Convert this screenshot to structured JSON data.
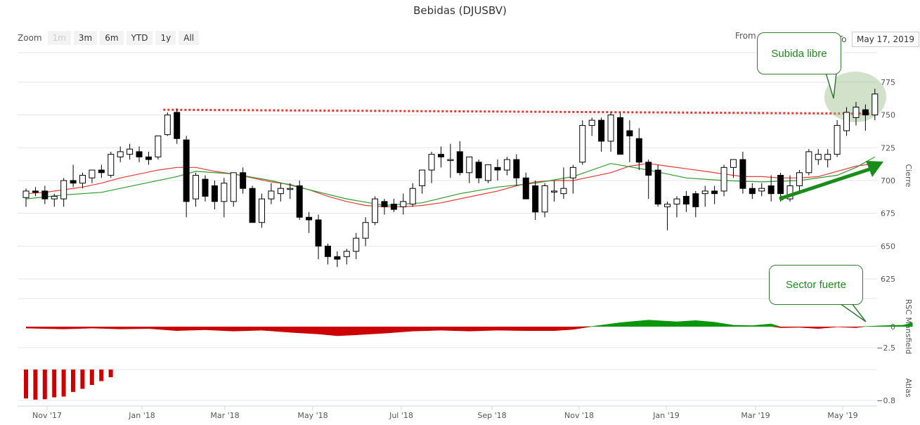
{
  "title": "Bebidas (DJUSBV)",
  "zoom": {
    "label": "Zoom",
    "buttons": [
      "1m",
      "3m",
      "6m",
      "YTD",
      "1y",
      "All"
    ]
  },
  "range": {
    "from_label": "From",
    "to_label": "To",
    "to_value": "May 17, 2019"
  },
  "annotations": {
    "breakout": "Subida libre",
    "sector": "Sector fuerte"
  },
  "colors": {
    "up": "#ffffff",
    "down": "#000000",
    "ma_short": "#e53935",
    "ma_long": "#2e9c2e",
    "resistance": "#e53935",
    "rsc_positive": "#0a960a",
    "rsc_negative": "#cc0000",
    "atlas": "#cc0000"
  },
  "chart_data": [
    {
      "type": "candlestick",
      "ylabel": "Cierre",
      "ylim": [
        618,
        785
      ],
      "yticks": [
        625,
        650,
        675,
        700,
        725,
        750,
        775
      ],
      "x_tick_labels": [
        "Nov '17",
        "Jan '18",
        "Mar '18",
        "May '18",
        "Jul '18",
        "Sep '18",
        "Nov '18",
        "Jan '19",
        "Mar '19",
        "May '19"
      ],
      "resistance_level": 754,
      "candles": [
        [
          687,
          694,
          680,
          692
        ],
        [
          692,
          695,
          688,
          691
        ],
        [
          692,
          696,
          682,
          686
        ],
        [
          686,
          690,
          680,
          688
        ],
        [
          686,
          702,
          680,
          700
        ],
        [
          700,
          712,
          695,
          698
        ],
        [
          698,
          706,
          694,
          704
        ],
        [
          702,
          708,
          698,
          708
        ],
        [
          708,
          712,
          702,
          706
        ],
        [
          704,
          722,
          702,
          720
        ],
        [
          718,
          726,
          714,
          722
        ],
        [
          720,
          728,
          716,
          724
        ],
        [
          722,
          726,
          714,
          718
        ],
        [
          718,
          722,
          712,
          716
        ],
        [
          718,
          734,
          716,
          734
        ],
        [
          735,
          752,
          734,
          750
        ],
        [
          752,
          755,
          728,
          732
        ],
        [
          731,
          734,
          672,
          684
        ],
        [
          686,
          706,
          680,
          704
        ],
        [
          701,
          704,
          684,
          688
        ],
        [
          696,
          700,
          678,
          684
        ],
        [
          684,
          702,
          672,
          698
        ],
        [
          684,
          706,
          680,
          706
        ],
        [
          706,
          710,
          690,
          694
        ],
        [
          694,
          696,
          668,
          668
        ],
        [
          668,
          690,
          664,
          686
        ],
        [
          686,
          698,
          682,
          692
        ],
        [
          690,
          698,
          684,
          694
        ],
        [
          694,
          698,
          686,
          694
        ],
        [
          696,
          700,
          670,
          672
        ],
        [
          672,
          676,
          660,
          670
        ],
        [
          670,
          674,
          640,
          650
        ],
        [
          650,
          652,
          636,
          642
        ],
        [
          642,
          646,
          634,
          640
        ],
        [
          642,
          648,
          636,
          646
        ],
        [
          646,
          660,
          640,
          656
        ],
        [
          656,
          672,
          650,
          668
        ],
        [
          668,
          688,
          666,
          686
        ],
        [
          684,
          686,
          674,
          680
        ],
        [
          682,
          686,
          676,
          678
        ],
        [
          680,
          690,
          674,
          684
        ],
        [
          682,
          698,
          680,
          694
        ],
        [
          696,
          708,
          690,
          708
        ],
        [
          708,
          722,
          698,
          720
        ],
        [
          720,
          726,
          710,
          718
        ],
        [
          716,
          728,
          702,
          716
        ],
        [
          722,
          730,
          704,
          706
        ],
        [
          706,
          718,
          698,
          718
        ],
        [
          714,
          716,
          698,
          702
        ],
        [
          700,
          712,
          698,
          712
        ],
        [
          710,
          716,
          700,
          708
        ],
        [
          708,
          718,
          704,
          716
        ],
        [
          716,
          720,
          696,
          702
        ],
        [
          702,
          706,
          686,
          686
        ],
        [
          696,
          700,
          670,
          676
        ],
        [
          676,
          698,
          672,
          696
        ],
        [
          692,
          700,
          684,
          692
        ],
        [
          690,
          710,
          686,
          694
        ],
        [
          702,
          712,
          690,
          710
        ],
        [
          714,
          746,
          712,
          742
        ],
        [
          742,
          748,
          734,
          746
        ],
        [
          746,
          748,
          722,
          730
        ],
        [
          730,
          752,
          722,
          750
        ],
        [
          748,
          752,
          720,
          720
        ],
        [
          738,
          746,
          714,
          734
        ],
        [
          732,
          740,
          708,
          714
        ],
        [
          714,
          716,
          686,
          704
        ],
        [
          708,
          712,
          680,
          682
        ],
        [
          680,
          684,
          662,
          682
        ],
        [
          682,
          688,
          672,
          686
        ],
        [
          688,
          692,
          676,
          682
        ],
        [
          690,
          692,
          672,
          680
        ],
        [
          690,
          696,
          680,
          692
        ],
        [
          692,
          696,
          682,
          690
        ],
        [
          692,
          712,
          688,
          710
        ],
        [
          710,
          716,
          702,
          716
        ],
        [
          716,
          722,
          690,
          694
        ],
        [
          694,
          698,
          686,
          690
        ],
        [
          692,
          698,
          688,
          694
        ],
        [
          696,
          704,
          684,
          690
        ],
        [
          704,
          706,
          684,
          690
        ],
        [
          686,
          704,
          684,
          696
        ],
        [
          696,
          708,
          692,
          706
        ],
        [
          706,
          724,
          704,
          722
        ],
        [
          716,
          724,
          712,
          720
        ],
        [
          716,
          724,
          710,
          720
        ],
        [
          720,
          746,
          718,
          742
        ],
        [
          738,
          756,
          734,
          752
        ],
        [
          748,
          760,
          742,
          756
        ],
        [
          754,
          758,
          738,
          750
        ],
        [
          750,
          770,
          746,
          766
        ]
      ],
      "ma_short": [
        [
          0,
          690
        ],
        [
          2,
          691
        ],
        [
          4,
          693
        ],
        [
          6,
          695
        ],
        [
          8,
          698
        ],
        [
          10,
          702
        ],
        [
          12,
          705
        ],
        [
          14,
          708
        ],
        [
          16,
          710
        ],
        [
          18,
          710
        ],
        [
          20,
          707
        ],
        [
          22,
          705
        ],
        [
          24,
          702
        ],
        [
          26,
          699
        ],
        [
          28,
          697
        ],
        [
          30,
          693
        ],
        [
          32,
          688
        ],
        [
          34,
          684
        ],
        [
          36,
          681
        ],
        [
          38,
          680
        ],
        [
          40,
          680
        ],
        [
          42,
          681
        ],
        [
          44,
          683
        ],
        [
          46,
          686
        ],
        [
          48,
          689
        ],
        [
          50,
          692
        ],
        [
          52,
          696
        ],
        [
          54,
          699
        ],
        [
          56,
          700
        ],
        [
          58,
          700
        ],
        [
          60,
          703
        ],
        [
          62,
          706
        ],
        [
          64,
          711
        ],
        [
          66,
          713
        ],
        [
          68,
          711
        ],
        [
          70,
          709
        ],
        [
          72,
          707
        ],
        [
          74,
          705
        ],
        [
          76,
          703
        ],
        [
          78,
          703
        ],
        [
          80,
          702
        ],
        [
          82,
          702
        ],
        [
          84,
          703
        ],
        [
          86,
          707
        ],
        [
          88,
          711
        ],
        [
          90,
          713
        ]
      ],
      "ma_long": [
        [
          0,
          686
        ],
        [
          4,
          689
        ],
        [
          8,
          691
        ],
        [
          12,
          697
        ],
        [
          16,
          703
        ],
        [
          18,
          707
        ],
        [
          22,
          705
        ],
        [
          26,
          700
        ],
        [
          30,
          693
        ],
        [
          34,
          686
        ],
        [
          38,
          681
        ],
        [
          42,
          683
        ],
        [
          46,
          690
        ],
        [
          50,
          695
        ],
        [
          54,
          698
        ],
        [
          58,
          703
        ],
        [
          62,
          713
        ],
        [
          66,
          708
        ],
        [
          70,
          702
        ],
        [
          74,
          700
        ],
        [
          78,
          699
        ],
        [
          82,
          700
        ],
        [
          86,
          704
        ],
        [
          88,
          710
        ],
        [
          90,
          718
        ]
      ]
    },
    {
      "type": "area",
      "ylabel": "RSC Mansfield",
      "ylim": [
        -3.6,
        2.5
      ],
      "yticks": [
        0,
        -2.5
      ],
      "points": [
        [
          0,
          -0.2
        ],
        [
          4,
          -0.3
        ],
        [
          7,
          -0.2
        ],
        [
          10,
          -0.3
        ],
        [
          13,
          -0.25
        ],
        [
          16,
          -0.5
        ],
        [
          19,
          -0.4
        ],
        [
          22,
          -0.55
        ],
        [
          25,
          -0.45
        ],
        [
          28,
          -0.7
        ],
        [
          31,
          -0.9
        ],
        [
          33,
          -1.1
        ],
        [
          35,
          -1.0
        ],
        [
          38,
          -0.8
        ],
        [
          41,
          -0.55
        ],
        [
          44,
          -0.45
        ],
        [
          47,
          -0.55
        ],
        [
          50,
          -0.45
        ],
        [
          53,
          -0.5
        ],
        [
          56,
          -0.5
        ],
        [
          58,
          -0.35
        ],
        [
          60,
          0.05
        ],
        [
          63,
          0.5
        ],
        [
          66,
          0.8
        ],
        [
          69,
          0.6
        ],
        [
          71,
          0.75
        ],
        [
          73,
          0.55
        ],
        [
          75,
          0.2
        ],
        [
          77,
          0.15
        ],
        [
          79,
          0.35
        ],
        [
          80,
          -0.15
        ],
        [
          82,
          -0.1
        ],
        [
          84,
          -0.25
        ],
        [
          86,
          -0.05
        ],
        [
          88,
          -0.15
        ],
        [
          89,
          0.05
        ],
        [
          91,
          0.15
        ],
        [
          93,
          0.2
        ],
        [
          94,
          0.5
        ]
      ]
    },
    {
      "type": "bar",
      "ylabel": "Atlas",
      "ylim": [
        -0.85,
        0
      ],
      "yticks": [
        -0.8
      ],
      "values": [
        -0.75,
        -0.78,
        -0.77,
        -0.72,
        -0.7,
        -0.58,
        -0.5,
        -0.4,
        -0.3,
        -0.2
      ]
    }
  ]
}
